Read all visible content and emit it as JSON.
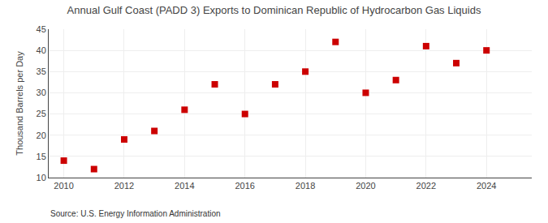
{
  "chart_data": {
    "type": "scatter",
    "title": "Annual Gulf Coast (PADD 3) Exports to Dominican Republic of Hydrocarbon Gas Liquids",
    "ylabel": "Thousand Barrels per Day",
    "source": "Source: U.S. Energy Information Administration",
    "x": [
      2010,
      2011,
      2012,
      2013,
      2014,
      2015,
      2016,
      2017,
      2018,
      2019,
      2020,
      2021,
      2022,
      2023,
      2024
    ],
    "values": [
      14,
      12,
      19,
      21,
      26,
      32,
      25,
      32,
      35,
      42,
      30,
      33,
      41,
      37,
      40
    ],
    "color": "#cc0000",
    "marker": "square",
    "xlim": [
      2009.5,
      2025.5
    ],
    "xticks": [
      2010,
      2012,
      2014,
      2016,
      2018,
      2020,
      2022,
      2024
    ],
    "ylim": [
      10,
      45
    ],
    "yticks": [
      10,
      15,
      20,
      25,
      30,
      35,
      40,
      45
    ],
    "grid": true
  }
}
